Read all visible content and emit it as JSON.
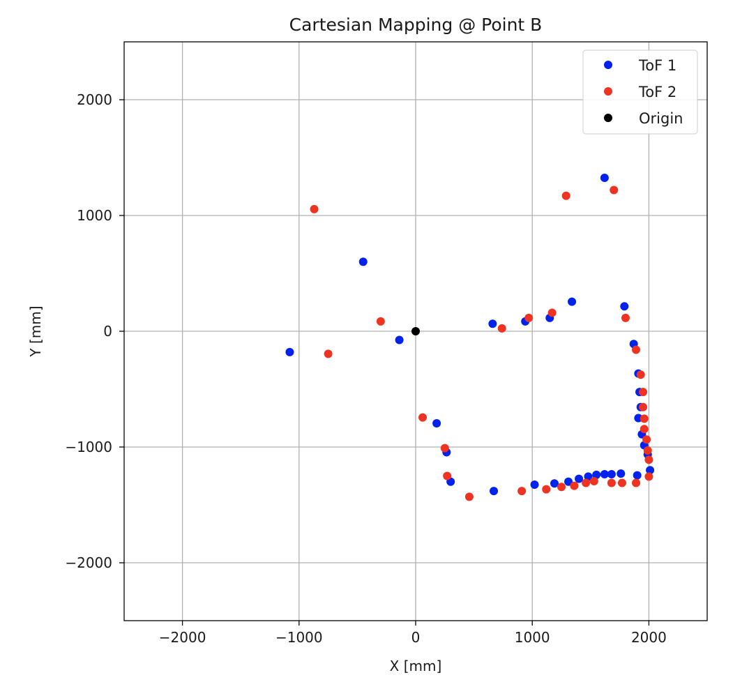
{
  "chart_data": {
    "type": "scatter",
    "title": "Cartesian Mapping @ Point B",
    "xlabel": "X [mm]",
    "ylabel": "Y [mm]",
    "xlim": [
      -2500,
      2500
    ],
    "ylim": [
      -2500,
      2500
    ],
    "xticks": [
      -2000,
      -1000,
      0,
      1000,
      2000
    ],
    "yticks": [
      -2000,
      -1000,
      0,
      1000,
      2000
    ],
    "xtick_labels": [
      "−2000",
      "−1000",
      "0",
      "1000",
      "2000"
    ],
    "ytick_labels": [
      "−2000",
      "−1000",
      "0",
      "1000",
      "2000"
    ],
    "grid": true,
    "legend_position": "upper right",
    "series": [
      {
        "name": "ToF 1",
        "color": "#0022ee",
        "points": [
          [
            -1080,
            -180
          ],
          [
            -450,
            600
          ],
          [
            -140,
            -75
          ],
          [
            180,
            -795
          ],
          [
            265,
            -1045
          ],
          [
            300,
            -1300
          ],
          [
            660,
            65
          ],
          [
            670,
            -1380
          ],
          [
            940,
            85
          ],
          [
            1020,
            -1325
          ],
          [
            1150,
            115
          ],
          [
            1190,
            -1315
          ],
          [
            1340,
            255
          ],
          [
            1310,
            -1300
          ],
          [
            1400,
            -1275
          ],
          [
            1480,
            -1255
          ],
          [
            1550,
            -1240
          ],
          [
            1620,
            1325
          ],
          [
            1620,
            -1235
          ],
          [
            1680,
            -1235
          ],
          [
            1760,
            -1230
          ],
          [
            1790,
            215
          ],
          [
            1870,
            -110
          ],
          [
            1900,
            -1245
          ],
          [
            1910,
            -365
          ],
          [
            1920,
            -525
          ],
          [
            1930,
            -655
          ],
          [
            1910,
            -750
          ],
          [
            1940,
            -890
          ],
          [
            1960,
            -985
          ],
          [
            1990,
            -1065
          ],
          [
            2010,
            -1200
          ]
        ]
      },
      {
        "name": "ToF 2",
        "color": "#ee3322",
        "points": [
          [
            -870,
            1055
          ],
          [
            -750,
            -195
          ],
          [
            -300,
            85
          ],
          [
            60,
            -745
          ],
          [
            250,
            -1010
          ],
          [
            270,
            -1250
          ],
          [
            460,
            -1430
          ],
          [
            740,
            25
          ],
          [
            910,
            -1380
          ],
          [
            970,
            115
          ],
          [
            1120,
            -1365
          ],
          [
            1170,
            160
          ],
          [
            1250,
            -1345
          ],
          [
            1290,
            1170
          ],
          [
            1360,
            -1335
          ],
          [
            1460,
            -1310
          ],
          [
            1530,
            -1295
          ],
          [
            1700,
            1220
          ],
          [
            1680,
            -1310
          ],
          [
            1800,
            115
          ],
          [
            1770,
            -1310
          ],
          [
            1890,
            -160
          ],
          [
            1890,
            -1310
          ],
          [
            1930,
            -375
          ],
          [
            1950,
            -525
          ],
          [
            1950,
            -655
          ],
          [
            1960,
            -755
          ],
          [
            1960,
            -845
          ],
          [
            1980,
            -935
          ],
          [
            1990,
            -1030
          ],
          [
            2000,
            -1110
          ],
          [
            2000,
            -1255
          ]
        ]
      },
      {
        "name": "Origin",
        "color": "#000000",
        "points": [
          [
            0,
            0
          ]
        ]
      }
    ]
  }
}
